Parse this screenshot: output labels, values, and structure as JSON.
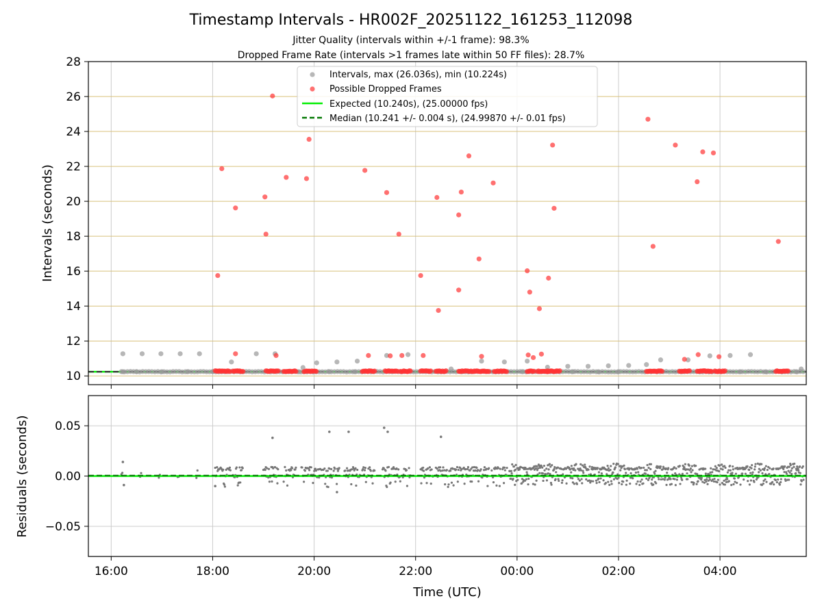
{
  "header": {
    "title": "Timestamp Intervals - HR002F_20251122_161253_112098",
    "subtitle1": "Jitter Quality (intervals within +/-1 frame): 98.3%",
    "subtitle2": "Dropped Frame Rate (intervals >1 frames late within 50 FF files): 28.7%"
  },
  "colors": {
    "intervals": "#999999",
    "dropped": "#ff3333",
    "expected": "#00ee00",
    "median": "#007700",
    "residuals": "#777777",
    "hgrid_top": "#d8c07a",
    "grid": "#cccccc"
  },
  "chart_data": [
    {
      "type": "scatter",
      "panel": "intervals",
      "xlabel": "",
      "ylabel": "Intervals (seconds)",
      "x_units": "hours since 16:00 UTC (22 Nov)",
      "xlim": [
        -0.45,
        13.7
      ],
      "ylim": [
        9.5,
        28
      ],
      "yticks": [
        10,
        12,
        14,
        16,
        18,
        20,
        22,
        24,
        26,
        28
      ],
      "ytick_labels": [
        "10",
        "12",
        "14",
        "16",
        "18",
        "20",
        "22",
        "24",
        "26",
        "28"
      ],
      "legend": {
        "placement": "top-center",
        "entries": [
          "Intervals, max (26.036s), min (10.224s)",
          "Possible Dropped Frames",
          "Expected (10.240s), (25.00000 fps)",
          "Median (10.241 +/- 0.004 s), (24.99870 +/- 0.01 fps)"
        ]
      },
      "expected": 10.24,
      "median": 10.241,
      "series": [
        {
          "name": "Intervals",
          "points": [
            [
              0.23,
              11.27
            ],
            [
              0.61,
              11.27
            ],
            [
              0.98,
              11.27
            ],
            [
              1.36,
              11.27
            ],
            [
              1.74,
              11.27
            ],
            [
              2.37,
              10.8
            ],
            [
              2.86,
              11.27
            ],
            [
              3.23,
              11.27
            ],
            [
              3.78,
              10.48
            ],
            [
              4.05,
              10.75
            ],
            [
              4.45,
              10.8
            ],
            [
              4.85,
              10.85
            ],
            [
              5.43,
              11.17
            ],
            [
              5.85,
              11.22
            ],
            [
              6.7,
              10.4
            ],
            [
              7.3,
              10.85
            ],
            [
              7.75,
              10.8
            ],
            [
              8.2,
              10.85
            ],
            [
              8.6,
              10.5
            ],
            [
              9.0,
              10.55
            ],
            [
              9.4,
              10.55
            ],
            [
              9.8,
              10.58
            ],
            [
              10.2,
              10.6
            ],
            [
              10.55,
              10.65
            ],
            [
              10.83,
              10.92
            ],
            [
              11.37,
              10.92
            ],
            [
              11.8,
              11.15
            ],
            [
              12.2,
              11.17
            ],
            [
              12.6,
              11.22
            ],
            [
              13.6,
              10.4
            ],
            [
              0.23,
              10.24
            ],
            [
              0.5,
              10.24
            ],
            [
              1.0,
              10.24
            ],
            [
              1.5,
              10.24
            ],
            [
              2.0,
              10.24
            ],
            [
              3.7,
              10.24
            ],
            [
              4.3,
              10.24
            ],
            [
              4.8,
              10.24
            ],
            [
              6.9,
              10.24
            ],
            [
              8.1,
              10.24
            ],
            [
              8.6,
              10.24
            ],
            [
              9.1,
              10.24
            ],
            [
              9.6,
              10.24
            ],
            [
              10.0,
              10.24
            ],
            [
              11.6,
              10.24
            ],
            [
              12.4,
              10.24
            ],
            [
              12.9,
              10.24
            ],
            [
              13.5,
              10.24
            ]
          ]
        },
        {
          "name": "Possible Dropped Frames",
          "points": [
            [
              2.1,
              15.75
            ],
            [
              2.18,
              21.87
            ],
            [
              2.45,
              19.62
            ],
            [
              2.45,
              11.27
            ],
            [
              3.03,
              20.25
            ],
            [
              3.05,
              18.12
            ],
            [
              3.18,
              26.03
            ],
            [
              3.25,
              11.17
            ],
            [
              3.45,
              21.37
            ],
            [
              3.85,
              21.3
            ],
            [
              3.9,
              23.55
            ],
            [
              5.0,
              21.77
            ],
            [
              5.07,
              11.17
            ],
            [
              5.43,
              20.5
            ],
            [
              5.5,
              11.15
            ],
            [
              5.67,
              18.12
            ],
            [
              5.73,
              11.17
            ],
            [
              6.1,
              15.75
            ],
            [
              6.15,
              11.17
            ],
            [
              6.42,
              20.22
            ],
            [
              6.45,
              13.75
            ],
            [
              6.85,
              19.22
            ],
            [
              6.85,
              14.92
            ],
            [
              6.9,
              20.53
            ],
            [
              7.05,
              22.6
            ],
            [
              7.25,
              16.7
            ],
            [
              7.3,
              11.12
            ],
            [
              7.53,
              21.05
            ],
            [
              8.2,
              16.02
            ],
            [
              8.22,
              11.2
            ],
            [
              8.25,
              14.8
            ],
            [
              8.32,
              11.05
            ],
            [
              8.44,
              13.85
            ],
            [
              8.48,
              11.25
            ],
            [
              8.62,
              15.6
            ],
            [
              8.7,
              23.22
            ],
            [
              8.73,
              19.6
            ],
            [
              10.58,
              24.7
            ],
            [
              10.68,
              17.42
            ],
            [
              11.12,
              23.22
            ],
            [
              11.3,
              10.95
            ],
            [
              11.55,
              21.12
            ],
            [
              11.57,
              11.22
            ],
            [
              11.66,
              22.83
            ],
            [
              11.87,
              22.77
            ],
            [
              11.98,
              11.1
            ],
            [
              13.15,
              17.7
            ]
          ],
          "clusters": [
            [
              2.05,
              2.35
            ],
            [
              2.4,
              2.6
            ],
            [
              3.05,
              3.3
            ],
            [
              3.4,
              3.65
            ],
            [
              3.8,
              4.05
            ],
            [
              4.95,
              5.2
            ],
            [
              5.4,
              5.65
            ],
            [
              5.7,
              5.9
            ],
            [
              6.1,
              6.3
            ],
            [
              6.4,
              6.6
            ],
            [
              6.85,
              7.45
            ],
            [
              7.55,
              7.8
            ],
            [
              8.2,
              8.35
            ],
            [
              8.4,
              8.6
            ],
            [
              8.6,
              8.85
            ],
            [
              10.55,
              10.88
            ],
            [
              11.2,
              11.4
            ],
            [
              11.55,
              11.85
            ],
            [
              11.9,
              12.1
            ],
            [
              13.1,
              13.35
            ]
          ]
        }
      ]
    },
    {
      "type": "scatter",
      "panel": "residuals",
      "xlabel": "Time (UTC)",
      "ylabel": "Residuals (seconds)",
      "xlim": [
        -0.45,
        13.7
      ],
      "ylim": [
        -0.08,
        0.08
      ],
      "yticks": [
        -0.05,
        0.0,
        0.05
      ],
      "ytick_labels": [
        "−0.05",
        "0.00",
        "0.05"
      ],
      "xticks": [
        0,
        2,
        4,
        6,
        8,
        10,
        12
      ],
      "xtick_labels": [
        "16:00",
        "18:00",
        "20:00",
        "22:00",
        "00:00",
        "02:00",
        "04:00"
      ],
      "outliers": [
        [
          0.23,
          0.014
        ],
        [
          3.18,
          0.038
        ],
        [
          4.3,
          0.044
        ],
        [
          4.68,
          0.044
        ],
        [
          5.38,
          0.048
        ],
        [
          5.45,
          0.044
        ],
        [
          6.5,
          0.039
        ],
        [
          4.45,
          -0.016
        ],
        [
          2.05,
          -0.01
        ],
        [
          0.25,
          -0.009
        ]
      ]
    }
  ]
}
